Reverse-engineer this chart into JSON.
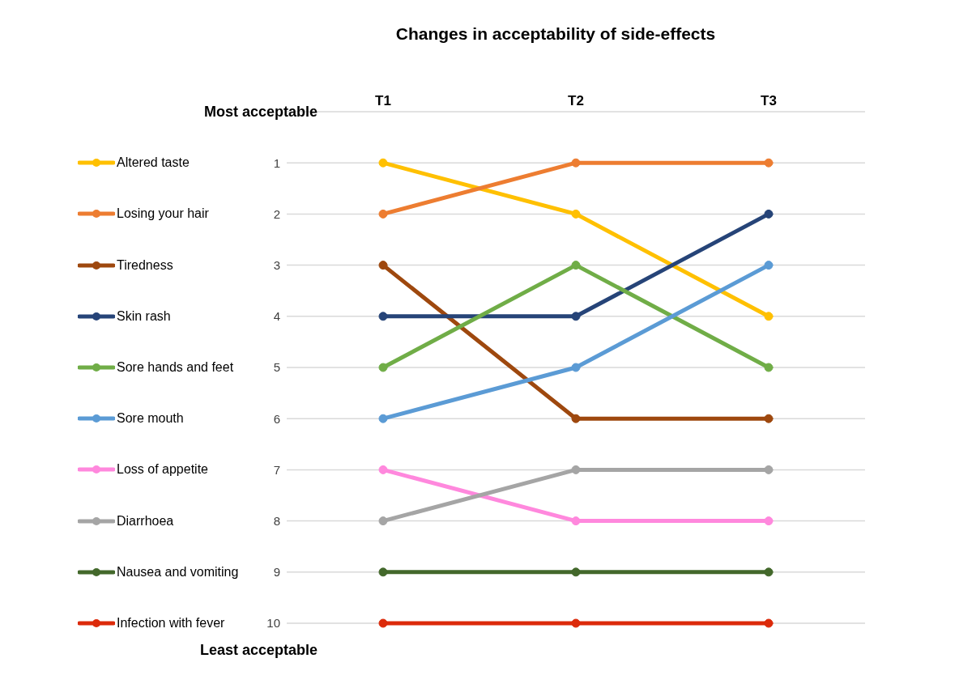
{
  "chart_data": {
    "type": "line",
    "title": "Changes in acceptability of side-effects",
    "categories": [
      "T1",
      "T2",
      "T3"
    ],
    "series": [
      {
        "name": "Altered taste",
        "color": "#ffc000",
        "values": [
          1,
          2,
          4
        ]
      },
      {
        "name": "Losing your hair",
        "color": "#ed7d31",
        "values": [
          2,
          1,
          1
        ]
      },
      {
        "name": "Tiredness",
        "color": "#9e480e",
        "values": [
          3,
          6,
          6
        ]
      },
      {
        "name": "Skin rash",
        "color": "#264478",
        "values": [
          4,
          4,
          2
        ]
      },
      {
        "name": "Sore hands and feet",
        "color": "#70ad47",
        "values": [
          5,
          3,
          5
        ]
      },
      {
        "name": "Sore mouth",
        "color": "#5b9bd5",
        "values": [
          6,
          5,
          3
        ]
      },
      {
        "name": "Loss of appetite",
        "color": "#ff88dd",
        "values": [
          7,
          8,
          8
        ]
      },
      {
        "name": "Diarrhoea",
        "color": "#a5a5a5",
        "values": [
          8,
          7,
          7
        ]
      },
      {
        "name": "Nausea and vomiting",
        "color": "#43682b",
        "values": [
          9,
          9,
          9
        ]
      },
      {
        "name": "Infection with fever",
        "color": "#dc2a0a",
        "values": [
          10,
          10,
          10
        ]
      }
    ],
    "ylim": [
      10,
      0
    ],
    "yticks": [
      {
        "value": 0,
        "label": null
      },
      1,
      2,
      3,
      4,
      5,
      6,
      7,
      8,
      9,
      10
    ],
    "annotations": [
      "Most acceptable",
      "Least acceptable"
    ],
    "grid": "y",
    "legend": "left",
    "marker": "circle",
    "line_style": "solid"
  }
}
